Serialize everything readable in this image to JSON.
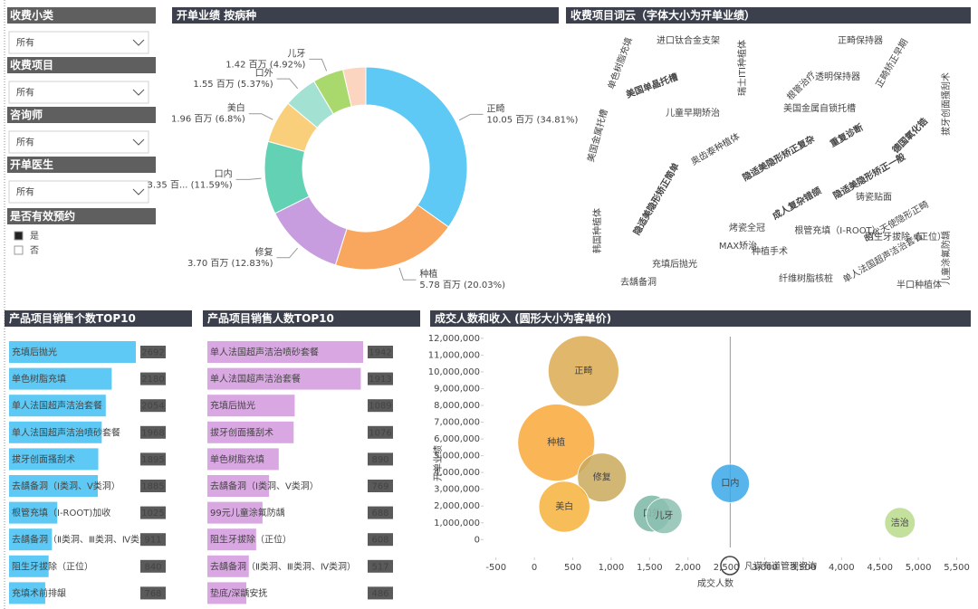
{
  "filters": [
    {
      "label": "收费小类",
      "value": "所有"
    },
    {
      "label": "收费项目",
      "value": "所有"
    },
    {
      "label": "咨询师",
      "value": "所有"
    },
    {
      "label": "开单医生",
      "value": "所有"
    }
  ],
  "checkbox_group": {
    "label": "是否有效预约",
    "options": [
      "是",
      "否"
    ]
  },
  "watermark": "凡谋有道管理咨询",
  "chart_data": [
    {
      "type": "pie",
      "title": "开单业绩 按病种",
      "donut": true,
      "categories": [
        "正畸",
        "种植",
        "修复",
        "口内",
        "美白",
        "口外",
        "儿牙",
        null
      ],
      "values": [
        10.05,
        5.78,
        3.7,
        3.35,
        1.96,
        1.55,
        1.42,
        1.05
      ],
      "value_labels": [
        "10.05 百万 (34.81%)",
        "5.78 百万 (20.03%)",
        "3.70 百万 (12.83%)",
        "3.35 百... (11.59%)",
        "1.96 百万 (6.8%)",
        "1.55 百万 (5.37%)",
        "1.42 百万 (4.92%)",
        null
      ],
      "colors": [
        "#5ec9f4",
        "#f9a65e",
        "#c79ddf",
        "#62d1b4",
        "#f9cf7c",
        "#a3e2d3",
        "#a9d96c",
        "#fcd5c0"
      ]
    },
    {
      "type": "wordcloud",
      "title": "收费项目词云（字体大小为开单业绩）",
      "words": [
        "成人复杂错颌",
        "隐适美隐形矫正一般",
        "隐适美隐形矫正简单",
        "美国单晶托槽",
        "德国氧化锆",
        "重复诊断",
        "美国金属自锁托槽",
        "隐适美隐形矫正复杂",
        "时代天使隐形正畸",
        "种植手术",
        "儿童早期矫治",
        "透明保持器",
        "正畸矫正早期",
        "根管治疗",
        "铸瓷贴面",
        "单人法国超声洁治套餐",
        "阻生牙拔除（正位）",
        "单色树脂充填",
        "拔牙创面搔刮术",
        "瑞士ITI种植体",
        "纤维树脂核桩",
        "美国金属托槽",
        "充填后抛光",
        "烤瓷全冠",
        "奥齿泰种植体",
        "MAX矫治",
        "根管充填（I-ROOT）",
        "去龋备洞",
        "儿童涂氟防龋",
        "正畸保持器",
        "韩国种植体",
        "进口钛合金支架",
        "半口种植体"
      ],
      "weights": [
        10,
        9,
        8,
        6,
        5,
        6,
        4,
        5,
        4,
        3,
        3,
        3,
        3,
        3,
        3,
        3,
        3,
        2,
        2,
        3,
        2,
        2,
        2,
        2,
        2,
        2,
        2,
        2,
        2,
        2,
        2,
        2,
        2
      ],
      "colors": [
        "#3fa9d8",
        "#9fd36a",
        "#f3a24b",
        "#9a83d1",
        "#5cc3b1",
        "#e6c84d",
        "#7fa4e0",
        "#d88fcf"
      ]
    },
    {
      "type": "bar",
      "orientation": "horizontal",
      "title": "产品项目销售个数TOP10",
      "color": "#5ec9f4",
      "categories": [
        "充填后抛光",
        "单色树脂充填",
        "单人法国超声洁治套餐",
        "单人法国超声洁治喷砂套餐",
        "拔牙创面搔刮术",
        "去龋备洞（Ⅰ类洞、Ⅴ类洞）",
        "根管充填（I-ROOT)加收",
        "去龋备洞（Ⅱ类洞、Ⅲ类洞、Ⅳ类洞）",
        "阻生牙拔除（正位）",
        "充填术前排龈"
      ],
      "values": [
        2692,
        2180,
        2054,
        1968,
        1895,
        1885,
        1025,
        911,
        840,
        768
      ]
    },
    {
      "type": "bar",
      "orientation": "horizontal",
      "title": "产品项目销售人数TOP10",
      "color": "#d9a8e2",
      "categories": [
        "单人法国超声洁治喷砂套餐",
        "单人法国超声洁治套餐",
        "充填后抛光",
        "拔牙创面搔刮术",
        "单色树脂充填",
        "去龋备洞（Ⅰ类洞、Ⅴ类洞）",
        "99元儿童涂氟防龋",
        "阻生牙拔除（正位）",
        "去龋备洞（Ⅱ类洞、Ⅲ类洞、Ⅳ类洞）",
        "垫底/深龋安抚"
      ],
      "values": [
        1942,
        1913,
        1089,
        1076,
        890,
        769,
        688,
        608,
        517,
        486
      ]
    },
    {
      "type": "bubble",
      "title": "成交人数和收入 (圆形大小为客单价)",
      "x_label": "成交人数",
      "y_label": "开单业绩",
      "categories": [
        "正畸",
        "种植",
        "修复",
        "美白",
        "口外",
        "儿牙",
        "口内",
        "洁治"
      ],
      "x": [
        640,
        285,
        880,
        390,
        1530,
        1690,
        2550,
        4760
      ],
      "values": [
        10050000,
        5780000,
        3700000,
        1960000,
        1550000,
        1420000,
        3350000,
        1000000
      ],
      "sizes": [
        15700,
        20300,
        4200,
        5000,
        1000,
        840,
        1300,
        210
      ],
      "colors": [
        "#dcaa52",
        "#f9a83a",
        "#c9a95c",
        "#f6b13c",
        "#7db7a6",
        "#8cc1b2",
        "#3aa8e8",
        "#b8da8c"
      ],
      "x_reference": 2550,
      "xlim": [
        -650,
        5600
      ],
      "ylim": [
        -200000,
        12100000
      ],
      "xticks": [
        -500,
        0,
        500,
        {
          "value": 1000,
          "label": "1,000"
        },
        {
          "value": 1500,
          "label": "1,500"
        },
        {
          "value": 2000,
          "label": "2,000"
        },
        {
          "value": 2500,
          "label": "2,500"
        },
        {
          "value": 3000,
          "label": "3,000"
        },
        {
          "value": 3500,
          "label": "3,500"
        },
        {
          "value": 4000,
          "label": "4,000"
        },
        {
          "value": 4500,
          "label": "4,500"
        },
        {
          "value": 5000,
          "label": "5,000"
        },
        {
          "value": 5500,
          "label": "5,500"
        }
      ],
      "yticks": [
        0,
        {
          "value": 1000000,
          "label": "1,000,000"
        },
        {
          "value": 2000000,
          "label": "2,000,000"
        },
        {
          "value": 3000000,
          "label": "3,000,000"
        },
        {
          "value": 4000000,
          "label": "4,000,000"
        },
        {
          "value": 5000000,
          "label": "5,000,000"
        },
        {
          "value": 6000000,
          "label": "6,000,000"
        },
        {
          "value": 7000000,
          "label": "7,000,000"
        },
        {
          "value": 8000000,
          "label": "8,000,000"
        },
        {
          "value": 9000000,
          "label": "9,000,000"
        },
        {
          "value": 10000000,
          "label": "10,000,000"
        },
        {
          "value": 11000000,
          "label": "11,000,000"
        },
        {
          "value": 12000000,
          "label": "12,000,000"
        }
      ]
    }
  ]
}
